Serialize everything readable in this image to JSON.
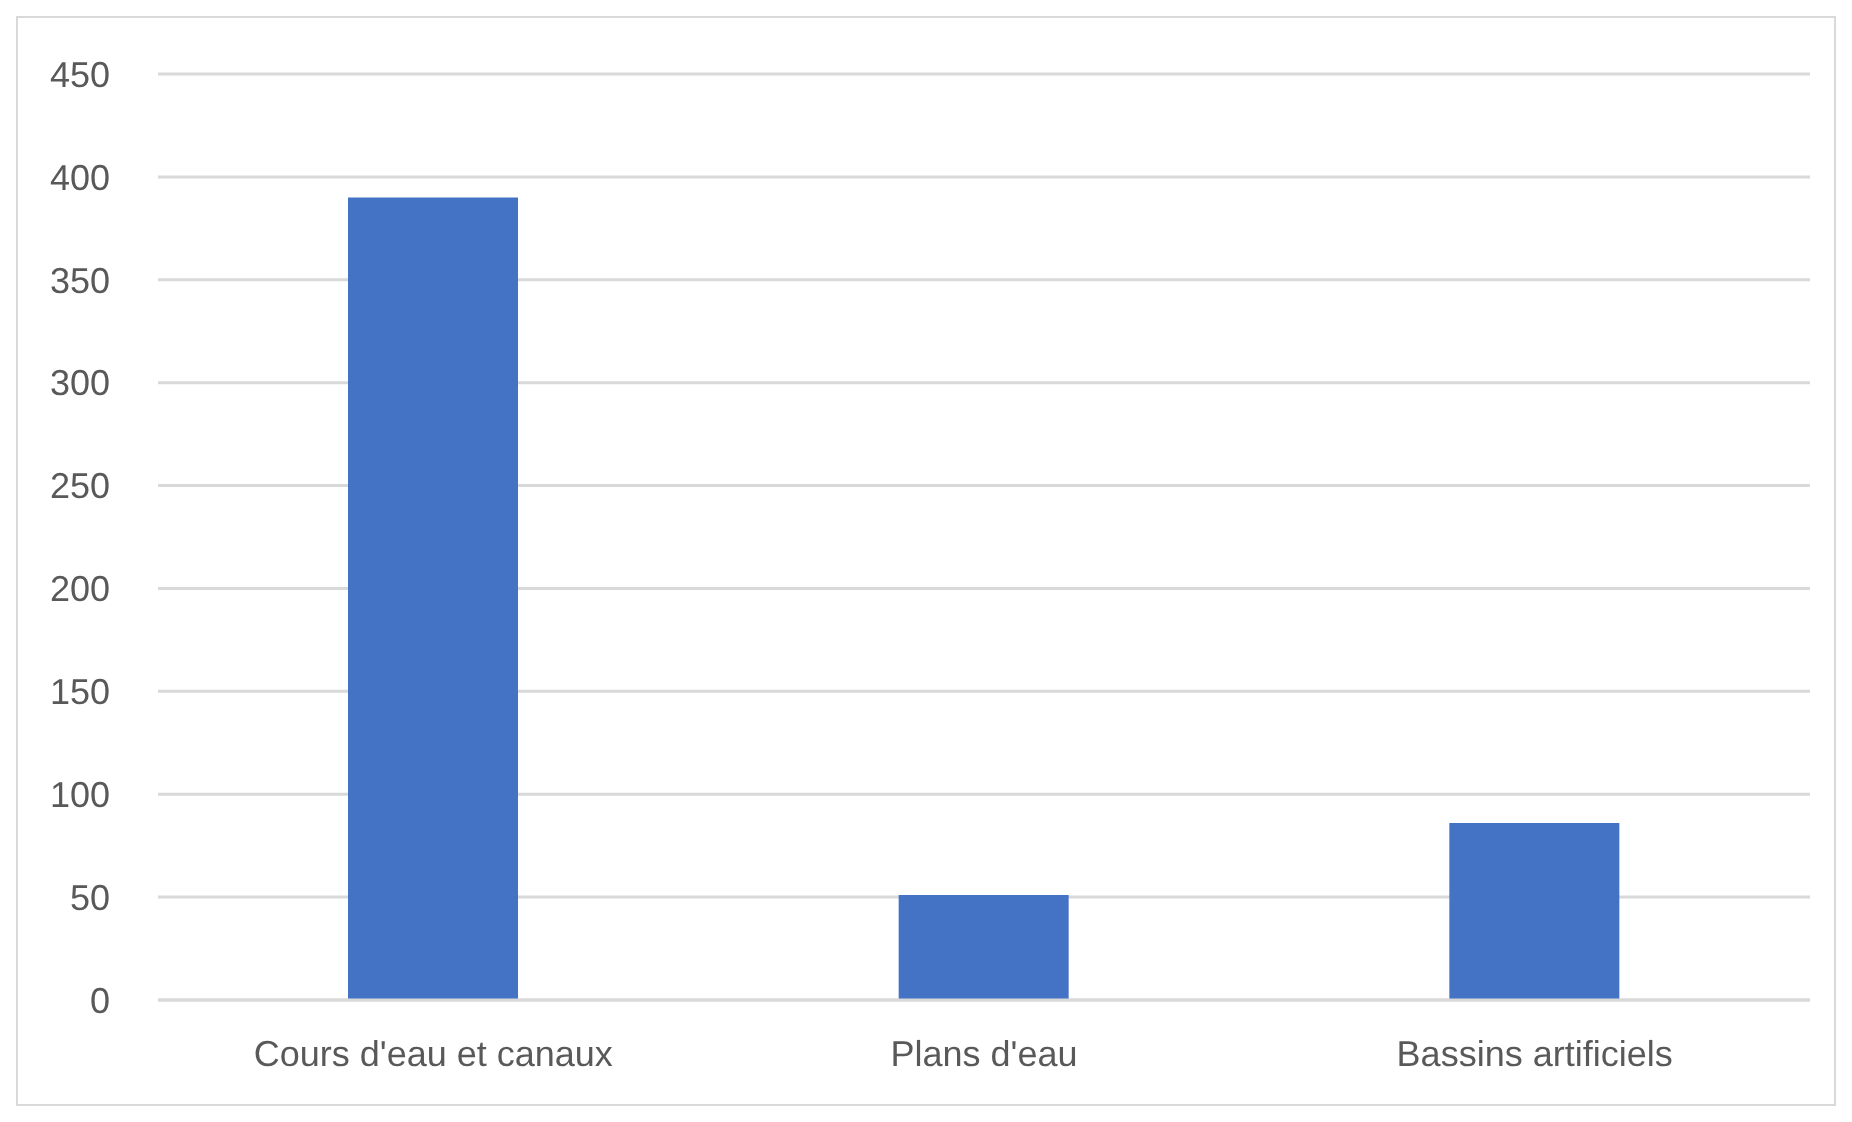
{
  "chart_data": {
    "type": "bar",
    "categories": [
      "Cours d'eau et canaux",
      "Plans d'eau",
      "Bassins artificiels"
    ],
    "values": [
      390,
      51,
      86
    ],
    "color": "#4472c4",
    "ylim": [
      0,
      450
    ],
    "yticks": [
      0,
      50,
      100,
      150,
      200,
      250,
      300,
      350,
      400,
      450
    ],
    "grid": "y",
    "legend": false
  }
}
